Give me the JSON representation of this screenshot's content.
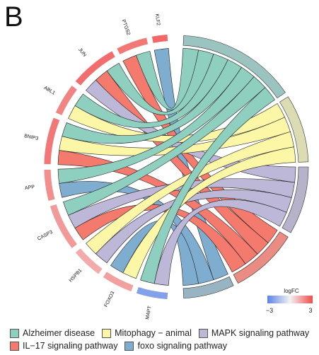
{
  "panel_label": "B",
  "chart_data": {
    "type": "chord",
    "genes": [
      {
        "name": "KLF2",
        "logFC": 2.5
      },
      {
        "name": "PTGS2",
        "logFC": 2.2
      },
      {
        "name": "JUN",
        "logFC": 2.4
      },
      {
        "name": "ABL1",
        "logFC": 2.0
      },
      {
        "name": "BNIP3",
        "logFC": 2.2
      },
      {
        "name": "APP",
        "logFC": 1.8
      },
      {
        "name": "CASP3",
        "logFC": 1.6
      },
      {
        "name": "HSPB1",
        "logFC": 1.3
      },
      {
        "name": "FOXO3",
        "logFC": 1.5
      },
      {
        "name": "MAPT",
        "logFC": -2.2
      }
    ],
    "pathways": [
      {
        "name": "Alzheimer disease",
        "color": "#8fcfbf",
        "sector": "#9bc4c0"
      },
      {
        "name": "Mitophagy − animal",
        "color": "#fbf7a6",
        "sector": "#dbdcb3"
      },
      {
        "name": "MAPK signaling pathway",
        "color": "#bdb7d8",
        "sector": "#b6b2ca"
      },
      {
        "name": "IL−17 signaling pathway",
        "color": "#f47a6e",
        "sector": "#ea8c83"
      },
      {
        "name": "foxo signaling pathway",
        "color": "#7fadd0",
        "sector": "#98b4c3"
      }
    ],
    "links": [
      [
        "KLF2",
        "foxo signaling pathway"
      ],
      [
        "PTGS2",
        "Alzheimer disease"
      ],
      [
        "PTGS2",
        "IL−17 signaling pathway"
      ],
      [
        "JUN",
        "Alzheimer disease"
      ],
      [
        "JUN",
        "IL−17 signaling pathway"
      ],
      [
        "JUN",
        "MAPK signaling pathway"
      ],
      [
        "ABL1",
        "Alzheimer disease"
      ],
      [
        "ABL1",
        "Mitophagy − animal"
      ],
      [
        "BNIP3",
        "Alzheimer disease"
      ],
      [
        "BNIP3",
        "Mitophagy − animal"
      ],
      [
        "BNIP3",
        "IL−17 signaling pathway"
      ],
      [
        "APP",
        "Alzheimer disease"
      ],
      [
        "APP",
        "foxo signaling pathway"
      ],
      [
        "CASP3",
        "Alzheimer disease"
      ],
      [
        "CASP3",
        "MAPK signaling pathway"
      ],
      [
        "CASP3",
        "IL−17 signaling pathway"
      ],
      [
        "HSPB1",
        "Mitophagy − animal"
      ],
      [
        "HSPB1",
        "MAPK signaling pathway"
      ],
      [
        "FOXO3",
        "foxo signaling pathway"
      ],
      [
        "FOXO3",
        "Mitophagy − animal"
      ],
      [
        "MAPT",
        "Alzheimer disease"
      ],
      [
        "MAPT",
        "MAPK signaling pathway"
      ]
    ],
    "colorbar": {
      "title": "logFC",
      "min": -3,
      "max": 3,
      "min_label": "−3",
      "max_label": "3",
      "low_color": "#5b84e8",
      "mid_color": "#f2f2f2",
      "high_color": "#f24c4c"
    }
  }
}
